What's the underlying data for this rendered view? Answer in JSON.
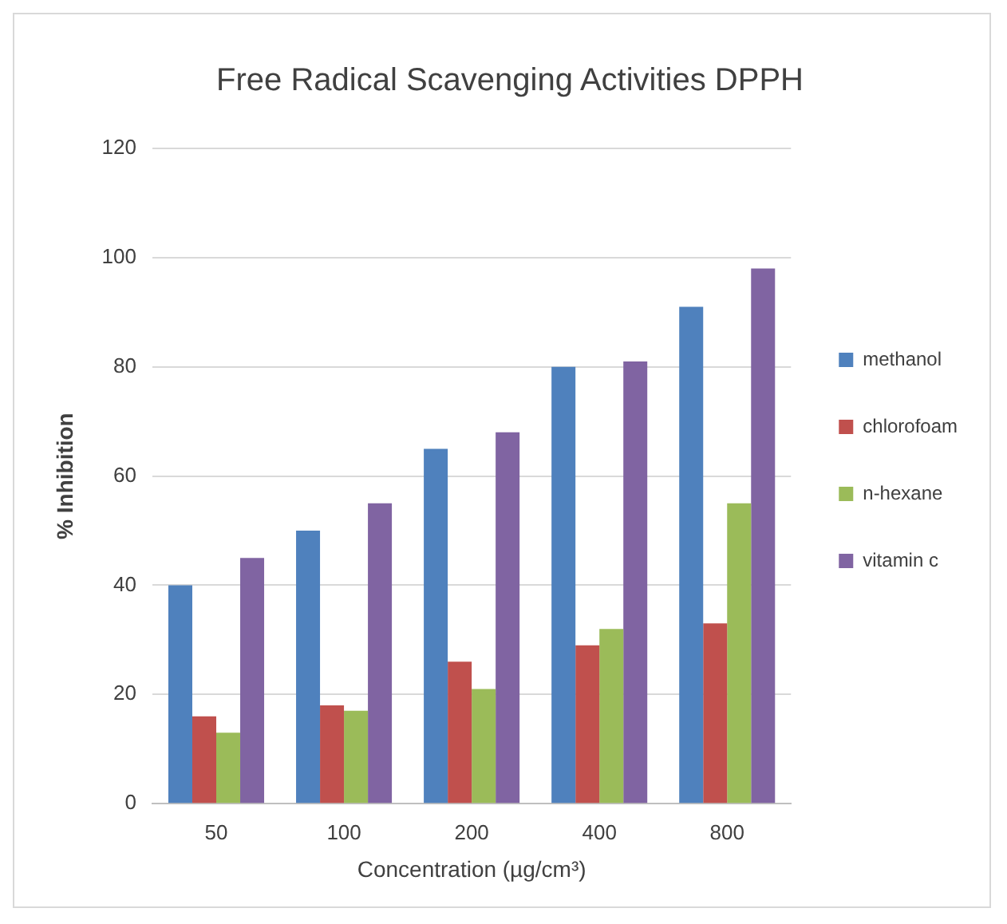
{
  "chart_data": {
    "type": "bar",
    "title": "Free Radical Scavenging Activities DPPH",
    "xlabel": "Concentration (µg/cm³)",
    "ylabel": "% Inhibition",
    "categories": [
      "50",
      "100",
      "200",
      "400",
      "800"
    ],
    "series": [
      {
        "name": "methanol",
        "color": "#4f81bd",
        "values": [
          40,
          50,
          65,
          80,
          91
        ]
      },
      {
        "name": "chlorofoam",
        "color": "#c0504d",
        "values": [
          16,
          18,
          26,
          29,
          33
        ]
      },
      {
        "name": "n-hexane",
        "color": "#9bbb59",
        "values": [
          13,
          17,
          21,
          32,
          55
        ]
      },
      {
        "name": "vitamin c",
        "color": "#8064a2",
        "values": [
          45,
          55,
          68,
          81,
          98
        ]
      }
    ],
    "ylim": [
      0,
      120
    ],
    "yticks": [
      0,
      20,
      40,
      60,
      80,
      100,
      120
    ],
    "grid": "y",
    "legend": "right"
  }
}
